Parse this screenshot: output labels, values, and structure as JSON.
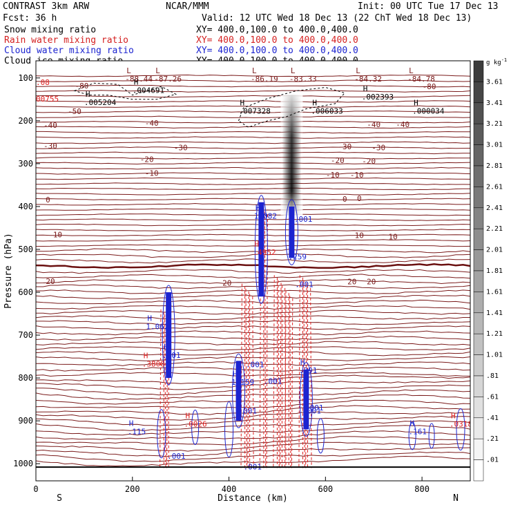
{
  "header": {
    "line1_left": "CONTRAST  3km ARW",
    "line1_center": "NCAR/MMM",
    "line1_right": "Init: 00 UTC Tue 17 Dec 13",
    "line2_left": "Fcst:    36 h",
    "line2_right": "Valid: 12 UTC Wed 18 Dec 13 (22 ChT Wed 18 Dec 13)",
    "fields": [
      {
        "name": "Snow mixing ratio",
        "xy": "XY= 400.0,100.0 to 400.0,400.0",
        "color": "#000000"
      },
      {
        "name": "Rain water mixing ratio",
        "xy": "XY= 400.0,100.0 to 400.0,400.0",
        "color": "#d42020"
      },
      {
        "name": "Cloud water mixing ratio",
        "xy": "XY= 400.0,100.0 to 400.0,400.0",
        "color": "#1c24d0"
      },
      {
        "name": "Cloud ice mixing ratio",
        "xy": "XY= 400.0,100.0 to 400.0,400.0",
        "color": "#000000"
      }
    ]
  },
  "colors": {
    "temperature": "#7a1a1a",
    "zero_isotherm": "#6a0f0f",
    "rain": "#e02020",
    "cloud_water": "#1c24d0",
    "snow": "#000000",
    "terrain": "#000000"
  },
  "colorbar": {
    "unit": "g kg",
    "unit_exp": "-1",
    "labels": [
      "3.61",
      "3.41",
      "3.21",
      "3.01",
      "2.81",
      "2.61",
      "2.41",
      "2.21",
      "2.01",
      "1.81",
      "1.61",
      "1.41",
      "1.21",
      "1.01",
      ".81",
      ".61",
      ".41",
      ".21",
      ".01"
    ]
  },
  "direction_labels": {
    "left": "S",
    "right": "N"
  },
  "chart_data": {
    "type": "cross-section",
    "xlabel": "Distance (km)",
    "ylabel": "Pressure (hPa)",
    "xlim": [
      0,
      900
    ],
    "ylim": [
      1040,
      60
    ],
    "x_ticks": [
      0,
      200,
      400,
      600,
      800
    ],
    "x_tick_labels": [
      "0",
      "200",
      "400",
      "600",
      "800"
    ],
    "y_ticks": [
      100,
      200,
      300,
      400,
      500,
      600,
      700,
      800,
      900,
      1000
    ],
    "y_tick_labels": [
      "100",
      "200",
      "300",
      "400",
      "500",
      "600",
      "700",
      "800",
      "900",
      "1000"
    ],
    "isotherms": [
      {
        "label": "-80",
        "label_positions": [
          [
            95,
            118
          ],
          [
            815,
            120
          ]
        ]
      },
      {
        "label": "-50",
        "label_positions": [
          [
            80,
            178
          ]
        ]
      },
      {
        "label": "-40",
        "label_positions": [
          [
            30,
            210
          ],
          [
            240,
            205
          ],
          [
            700,
            208
          ],
          [
            760,
            208
          ]
        ]
      },
      {
        "label": "-30",
        "label_positions": [
          [
            30,
            258
          ],
          [
            300,
            262
          ],
          [
            640,
            260
          ],
          [
            710,
            262
          ]
        ]
      },
      {
        "label": "-20",
        "label_positions": [
          [
            230,
            290
          ],
          [
            625,
            292
          ],
          [
            690,
            294
          ]
        ]
      },
      {
        "label": "-10",
        "label_positions": [
          [
            240,
            322
          ],
          [
            615,
            326
          ],
          [
            665,
            326
          ]
        ]
      },
      {
        "label": "0",
        "label_positions": [
          [
            25,
            384
          ],
          [
            640,
            382
          ],
          [
            670,
            381
          ]
        ]
      },
      {
        "label": "10",
        "label_positions": [
          [
            45,
            465
          ],
          [
            670,
            467
          ],
          [
            740,
            470
          ]
        ]
      },
      {
        "label": "20",
        "label_positions": [
          [
            30,
            574
          ],
          [
            396,
            578
          ],
          [
            655,
            575
          ],
          [
            695,
            575
          ]
        ]
      }
    ],
    "extrema_labels": [
      {
        "type": "L",
        "value": "-88.44",
        "x": 185,
        "y": 105
      },
      {
        "type": "L",
        "value": "-87.26",
        "x": 245,
        "y": 105
      },
      {
        "type": "L",
        "value": "-86.19",
        "x": 445,
        "y": 105
      },
      {
        "type": "L",
        "value": "-83.33",
        "x": 525,
        "y": 105
      },
      {
        "type": "L",
        "value": "-84.32",
        "x": 660,
        "y": 105
      },
      {
        "type": "L",
        "value": "-84.78",
        "x": 770,
        "y": 105
      },
      {
        "type": "",
        "value": ".08",
        "x": 0,
        "y": 113
      },
      {
        "type": "H",
        "value": ".004691",
        "x": 200,
        "y": 132
      },
      {
        "type": "",
        "value": "00755",
        "x": 0,
        "y": 152
      },
      {
        "type": "H",
        "value": ".005204",
        "x": 100,
        "y": 160
      },
      {
        "type": "H",
        "value": ".007328",
        "x": 420,
        "y": 180
      },
      {
        "type": "H",
        "value": ".006033",
        "x": 570,
        "y": 180
      },
      {
        "type": "H",
        "value": ".002393",
        "x": 675,
        "y": 147
      },
      {
        "type": "H",
        "value": ".000034",
        "x": 780,
        "y": 180
      },
      {
        "type": "H",
        "value": "1.062",
        "x": 228,
        "y": 683
      },
      {
        "type": "H",
        "value": ".3808",
        "x": 220,
        "y": 770
      },
      {
        "type": "H",
        "value": "1.082",
        "x": 452,
        "y": 425
      },
      {
        "type": "H",
        "value": ".4952",
        "x": 450,
        "y": 510
      },
      {
        "type": "H",
        "value": ".259",
        "x": 523,
        "y": 520
      },
      {
        "type": "H",
        "value": "1.159",
        "x": 405,
        "y": 813
      },
      {
        "type": "H",
        "value": ".001",
        "x": 262,
        "y": 750
      },
      {
        "type": "",
        "value": ".001",
        "x": 535,
        "y": 432
      },
      {
        "type": "",
        "value": ".001",
        "x": 537,
        "y": 585
      },
      {
        "type": "",
        "value": ".001",
        "x": 472,
        "y": 810
      },
      {
        "type": "H",
        "value": ".391",
        "x": 545,
        "y": 785
      },
      {
        "type": "H",
        "value": ".0026",
        "x": 307,
        "y": 910
      },
      {
        "type": "H",
        "value": ".115",
        "x": 190,
        "y": 928
      },
      {
        "type": "H",
        "value": ".161",
        "x": 772,
        "y": 928
      },
      {
        "type": "H",
        "value": ".0318",
        "x": 857,
        "y": 910
      },
      {
        "type": "",
        "value": ".001",
        "x": 272,
        "y": 985
      },
      {
        "type": "",
        "value": ".001",
        "x": 430,
        "y": 1010
      },
      {
        "type": "",
        "value": ".001",
        "x": 553,
        "y": 880
      },
      {
        "type": "",
        "value": ".001",
        "x": 420,
        "y": 880
      },
      {
        "type": "",
        "value": ".001",
        "x": 435,
        "y": 772
      },
      {
        "type": "",
        "value": ".001",
        "x": 558,
        "y": 872
      }
    ],
    "snow_plume": {
      "x_center": 530,
      "p_top": 140,
      "p_bottom": 420,
      "max_value": 3.6
    }
  }
}
